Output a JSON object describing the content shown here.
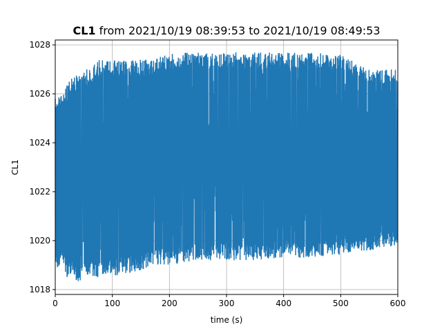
{
  "chart_data": {
    "type": "line",
    "title_bold": "CL1",
    "title_rest": " from 2021/10/19 08:39:53 to 2021/10/19 08:49:53",
    "xlabel": "time (s)",
    "ylabel": "CL1",
    "xlim": [
      0,
      600
    ],
    "ylim": [
      1017.8,
      1028.2
    ],
    "xticks": [
      0,
      100,
      200,
      300,
      400,
      500,
      600
    ],
    "yticks": [
      1018,
      1020,
      1022,
      1024,
      1026,
      1028
    ],
    "grid": true,
    "line_color": "#1f77b4",
    "series": [
      {
        "envelope_x": [
          0,
          5,
          10,
          15,
          20,
          25,
          30,
          40,
          50,
          60,
          75,
          100,
          150,
          175,
          200,
          250,
          300,
          350,
          400,
          450,
          500,
          550,
          600
        ],
        "upper": [
          1025.8,
          1026.1,
          1026.1,
          1026.0,
          1026.4,
          1026.6,
          1026.8,
          1026.8,
          1027.0,
          1027.0,
          1027.4,
          1027.4,
          1027.4,
          1027.4,
          1027.7,
          1027.7,
          1027.7,
          1027.7,
          1027.7,
          1027.7,
          1027.6,
          1027.0,
          1027.0
        ],
        "lower": [
          1019.0,
          1018.8,
          1019.2,
          1019.0,
          1018.5,
          1018.5,
          1018.5,
          1018.3,
          1018.5,
          1018.5,
          1018.5,
          1018.5,
          1018.8,
          1019.0,
          1019.0,
          1019.2,
          1019.2,
          1019.2,
          1019.3,
          1019.3,
          1019.4,
          1019.6,
          1019.8
        ]
      }
    ]
  }
}
